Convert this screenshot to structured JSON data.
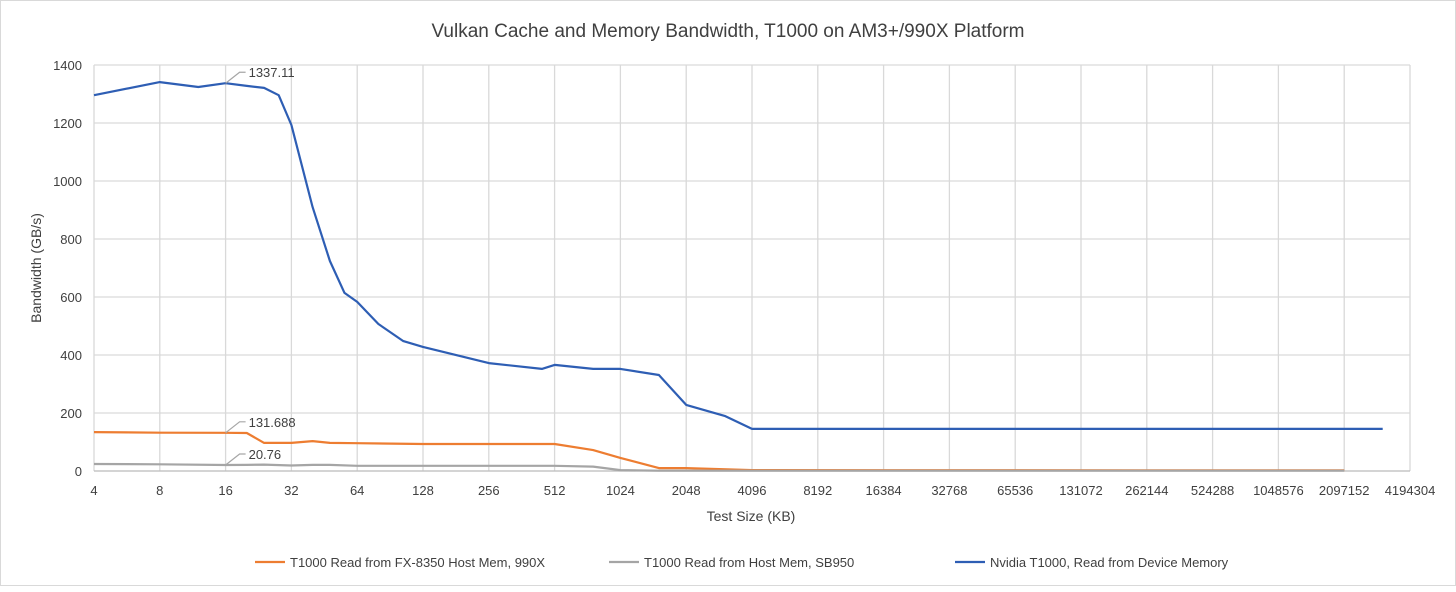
{
  "chart_data": {
    "type": "line",
    "title": "Vulkan Cache and Memory Bandwidth, T1000 on AM3+/990X Platform",
    "xlabel": "Test Size (KB)",
    "ylabel": "Bandwidth (GB/s)",
    "xscale": "log2",
    "xticks": [
      "4",
      "8",
      "16",
      "32",
      "64",
      "128",
      "256",
      "512",
      "1024",
      "2048",
      "4096",
      "8192",
      "16384",
      "32768",
      "65536",
      "131072",
      "262144",
      "524288",
      "1048576",
      "2097152",
      "4194304"
    ],
    "ylim": [
      0,
      1400
    ],
    "yticks": [
      "0",
      "200",
      "400",
      "600",
      "800",
      "1000",
      "1200",
      "1400"
    ],
    "grid": true,
    "legend_position": "bottom",
    "series": [
      {
        "name": "T1000 Read from FX-8350 Host Mem, 990X",
        "color": "#ED7D31",
        "x": [
          4,
          8,
          16,
          20,
          24,
          32,
          40,
          48,
          64,
          128,
          256,
          512,
          768,
          1024,
          1536,
          2048,
          4096,
          2097152
        ],
        "y": [
          134,
          132,
          131.688,
          131,
          97,
          97,
          103,
          97,
          96,
          93,
          93,
          93,
          72,
          45,
          10,
          10,
          3,
          2
        ],
        "label": {
          "x": 16,
          "text": "131.688"
        }
      },
      {
        "name": "T1000 Read from Host Mem, SB950",
        "color": "#A5A5A5",
        "x": [
          4,
          8,
          16,
          20,
          24,
          32,
          40,
          48,
          64,
          128,
          256,
          512,
          768,
          1024,
          1536,
          4096,
          2097152
        ],
        "y": [
          24,
          23,
          20.76,
          21,
          22,
          19,
          21,
          21,
          18,
          18,
          18,
          18,
          15,
          3,
          1,
          1,
          1
        ],
        "label": {
          "x": 16,
          "text": "20.76"
        }
      },
      {
        "name": "Nvidia T1000, Read from Device Memory",
        "color": "#2E5EB4",
        "x": [
          4,
          8,
          12,
          16,
          20,
          24,
          28,
          32,
          40,
          48,
          56,
          64,
          80,
          104,
          128,
          256,
          448,
          512,
          768,
          1024,
          1536,
          2048,
          3072,
          4096,
          3145728
        ],
        "y": [
          1296,
          1341,
          1324,
          1337.11,
          1328,
          1321,
          1296,
          1193,
          910,
          724,
          614,
          583,
          507,
          448,
          428,
          372,
          352,
          366,
          352,
          352,
          331,
          228,
          190,
          145,
          145
        ],
        "label": {
          "x": 16,
          "text": "1337.11"
        }
      }
    ]
  }
}
